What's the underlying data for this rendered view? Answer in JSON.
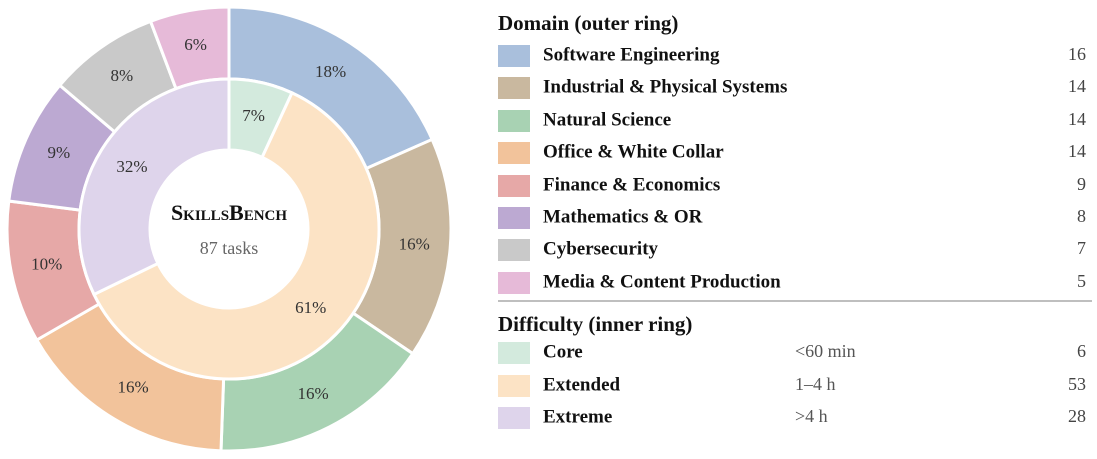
{
  "chart_data": {
    "type": "donut",
    "center_title": "SkillsBench",
    "center_subtitle": "87 tasks",
    "rings": [
      {
        "title": "Domain (outer ring)",
        "categories": [
          "Software Engineering",
          "Industrial & Physical Systems",
          "Natural Science",
          "Office & White Collar",
          "Finance & Economics",
          "Mathematics & OR",
          "Cybersecurity",
          "Media & Content Production"
        ],
        "values": [
          16,
          14,
          14,
          14,
          9,
          8,
          7,
          5
        ],
        "percent_labels": [
          "18%",
          "16%",
          "16%",
          "16%",
          "10%",
          "9%",
          "8%",
          "6%"
        ],
        "colors": [
          "#a9bfdc",
          "#c9b89f",
          "#a8d2b3",
          "#f2c39b",
          "#e6a8a7",
          "#bca9d2",
          "#c9c9c9",
          "#e6bad8"
        ]
      },
      {
        "title": "Difficulty (inner ring)",
        "categories": [
          "Core",
          "Extended",
          "Extreme"
        ],
        "times": [
          "<60 min",
          "1–4 h",
          ">4 h"
        ],
        "values": [
          6,
          53,
          28
        ],
        "percent_labels": [
          "7%",
          "61%",
          "32%"
        ],
        "colors": [
          "#d3eadd",
          "#fce3c5",
          "#ded4eb"
        ]
      }
    ]
  }
}
